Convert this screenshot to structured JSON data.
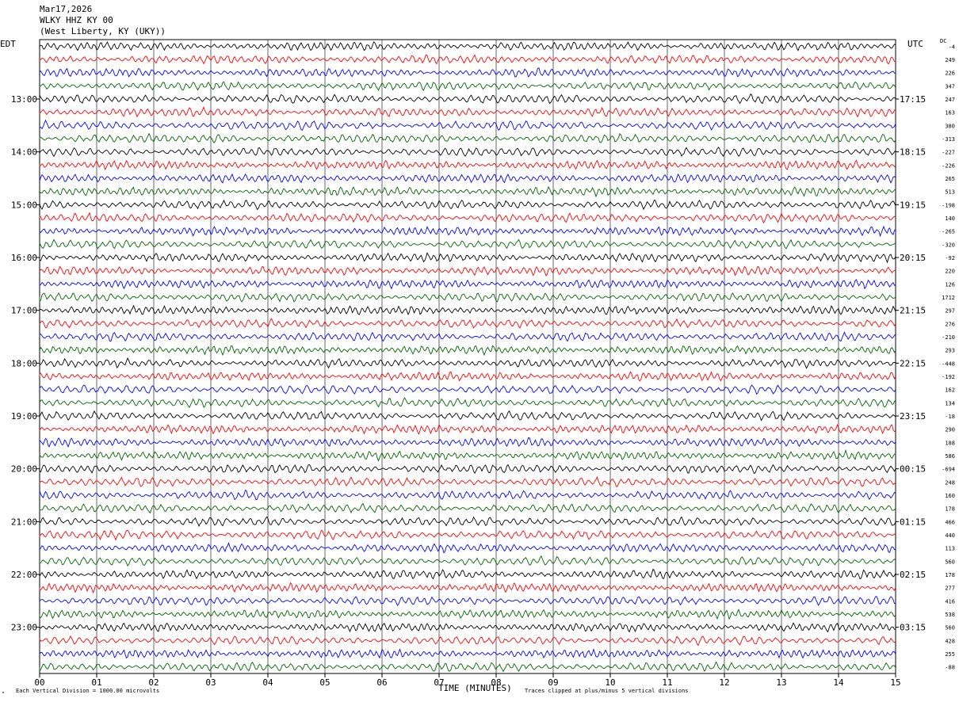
{
  "header": {
    "date": "Mar17,2026",
    "station": "WLKY HHZ KY 00",
    "location": "(West Liberty, KY (UKY))"
  },
  "footer": {
    "scale_note": "Each Vertical Division = 1000.00 microvolts",
    "clip_note": "Traces clipped at plus/minus 5 vertical divisions",
    "corner_mark": "\""
  },
  "chart_data": {
    "type": "line",
    "title": "",
    "xlabel": "TIME (MINUTES)",
    "ylabel": "",
    "left_axis_label": "EDT",
    "right_axis_label": "UTC",
    "dc_label": "DC",
    "xlim": [
      0,
      15
    ],
    "x_ticks": [
      "00",
      "01",
      "02",
      "03",
      "04",
      "05",
      "06",
      "07",
      "08",
      "09",
      "10",
      "11",
      "12",
      "13",
      "14",
      "15"
    ],
    "grid": true,
    "row_count": 48,
    "colors": [
      "#000000",
      "#ff0000",
      "#0000ff",
      "#006400"
    ],
    "edt_labels": [
      {
        "row": 4,
        "text": "13:00"
      },
      {
        "row": 8,
        "text": "14:00"
      },
      {
        "row": 12,
        "text": "15:00"
      },
      {
        "row": 16,
        "text": "16:00"
      },
      {
        "row": 20,
        "text": "17:00"
      },
      {
        "row": 24,
        "text": "18:00"
      },
      {
        "row": 28,
        "text": "19:00"
      },
      {
        "row": 32,
        "text": "20:00"
      },
      {
        "row": 36,
        "text": "21:00"
      },
      {
        "row": 40,
        "text": "22:00"
      },
      {
        "row": 44,
        "text": "23:00"
      }
    ],
    "utc_labels": [
      {
        "row": 4,
        "text": "17:15"
      },
      {
        "row": 8,
        "text": "18:15"
      },
      {
        "row": 12,
        "text": "19:15"
      },
      {
        "row": 16,
        "text": "20:15"
      },
      {
        "row": 20,
        "text": "21:15"
      },
      {
        "row": 24,
        "text": "22:15"
      },
      {
        "row": 28,
        "text": "23:15"
      },
      {
        "row": 32,
        "text": "00:15"
      },
      {
        "row": 36,
        "text": "01:15"
      },
      {
        "row": 40,
        "text": "02:15"
      },
      {
        "row": 44,
        "text": "03:15"
      }
    ],
    "dc_offsets": [
      "-4",
      "249",
      "226",
      "347",
      "247",
      "163",
      "380",
      "-313",
      "-227",
      "-226",
      "265",
      "513",
      "-198",
      "140",
      "-265",
      "-320",
      "-92",
      "220",
      "126",
      "1712",
      "297",
      "276",
      "-210",
      "293",
      "-448",
      "-192",
      "162",
      "134",
      "-18",
      "290",
      "188",
      "586",
      "-694",
      "248",
      "160",
      "178",
      "466",
      "440",
      "113",
      "560",
      "178",
      "277",
      "416",
      "538",
      "560",
      "428",
      "255",
      "-88"
    ]
  }
}
